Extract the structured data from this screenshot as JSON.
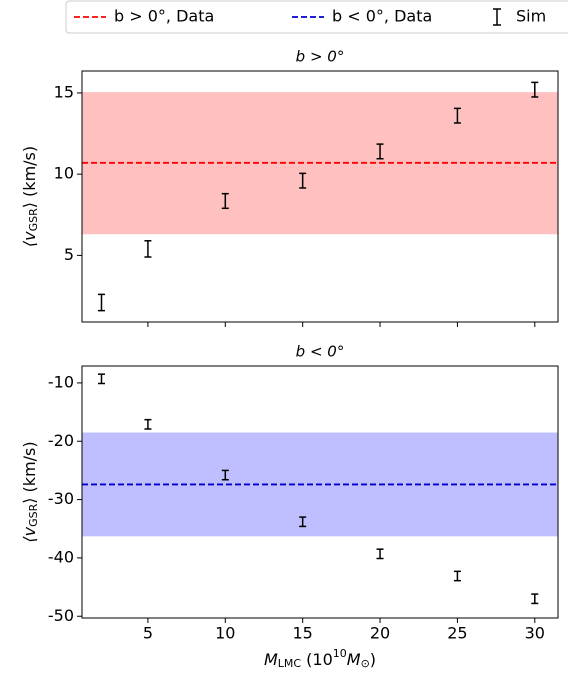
{
  "chart_data": [
    {
      "type": "errorbar",
      "title": "b > 0°",
      "ylabel": [
        "⟨v",
        "GSR",
        "⟩ (km/s)"
      ],
      "xlim": [
        0.74,
        31.5
      ],
      "xticks": [
        5,
        10,
        15,
        20,
        25,
        30
      ],
      "ylim": [
        0.9,
        16.35
      ],
      "yticks": [
        5,
        10,
        15
      ],
      "series": [
        {
          "name": "b > 0°, Data",
          "kind": "hline",
          "color": "#ff0000",
          "band_color": "#ffc0c0",
          "value": 10.7,
          "band": [
            6.3,
            15.05
          ]
        },
        {
          "name": "Sim",
          "kind": "errorbar",
          "color": "#000000",
          "x": [
            2,
            5,
            10,
            15,
            20,
            25,
            30
          ],
          "values": [
            2.1,
            5.4,
            8.35,
            9.6,
            11.4,
            13.6,
            15.2
          ],
          "errors": [
            0.5,
            0.5,
            0.45,
            0.45,
            0.45,
            0.45,
            0.45
          ]
        }
      ]
    },
    {
      "type": "errorbar",
      "title": "b < 0°",
      "ylabel": [
        "⟨v",
        "GSR",
        "⟩ (km/s)"
      ],
      "xlabel": [
        "M",
        "LMC",
        " (10",
        "10",
        "M",
        "⊙",
        ")"
      ],
      "xlim": [
        0.74,
        31.5
      ],
      "xticks": [
        5,
        10,
        15,
        20,
        25,
        30
      ],
      "ylim": [
        -50.3,
        -7.1
      ],
      "yticks": [
        -10,
        -20,
        -30,
        -40,
        -50
      ],
      "series": [
        {
          "name": "b < 0°, Data",
          "kind": "hline",
          "color": "#0000cc",
          "band_color": "#bfbfff",
          "value": -27.4,
          "band": [
            -36.3,
            -18.5
          ]
        },
        {
          "kind": "errorbar",
          "color": "#000000",
          "x": [
            2,
            5,
            10,
            15,
            20,
            25,
            30
          ],
          "values": [
            -9.3,
            -17.1,
            -25.8,
            -33.8,
            -39.3,
            -43.1,
            -47.0
          ],
          "errors": [
            0.8,
            0.8,
            0.8,
            0.8,
            0.8,
            0.8,
            0.8
          ]
        }
      ]
    }
  ]
}
